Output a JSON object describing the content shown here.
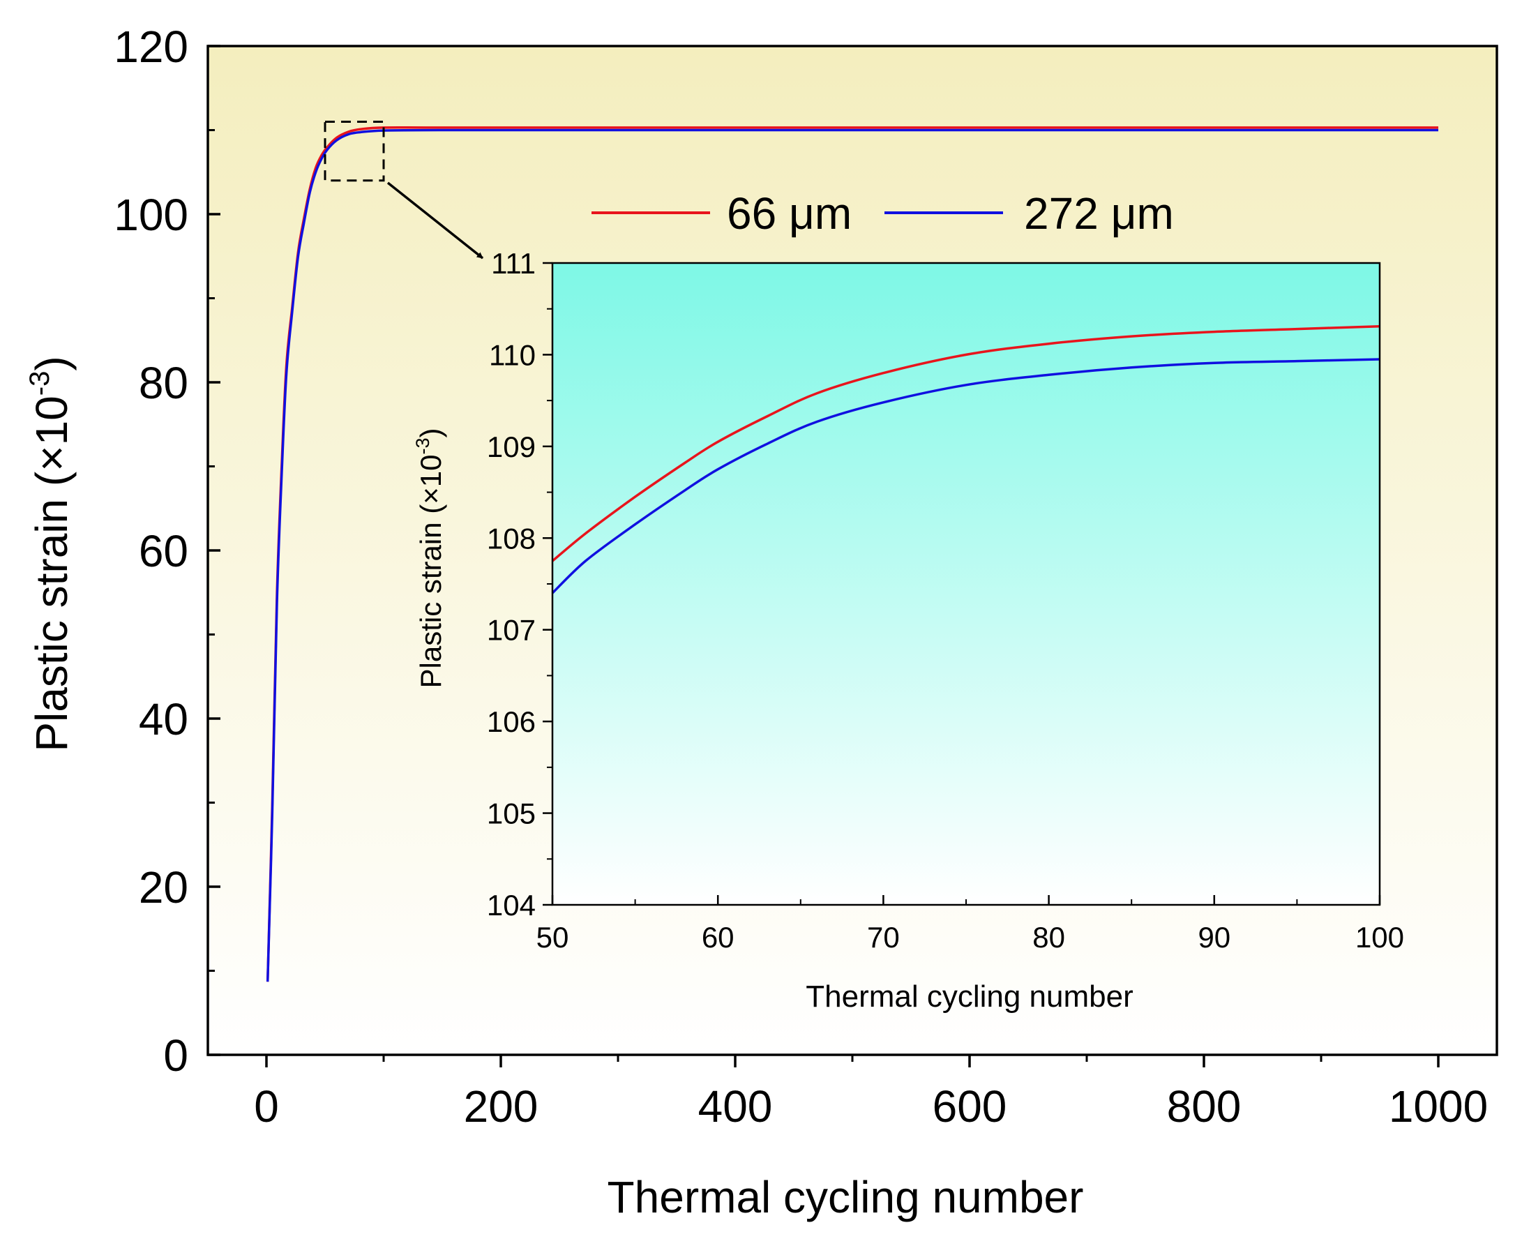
{
  "chart_data": [
    {
      "id": "main",
      "type": "line",
      "title": "",
      "xlabel": "Thermal cycling number",
      "ylabel_main": "Plastic strain (×10",
      "ylabel_exp": "-3",
      "ylabel_close": ")",
      "xlim": [
        -50,
        1050
      ],
      "ylim": [
        0,
        120
      ],
      "xticks": [
        0,
        200,
        400,
        600,
        800,
        1000
      ],
      "xtick_labels": [
        "0",
        "200",
        "400",
        "600",
        "800",
        "1000"
      ],
      "yticks": [
        0,
        20,
        40,
        60,
        80,
        100,
        120
      ],
      "ytick_labels": [
        "0",
        "20",
        "40",
        "60",
        "80",
        "100",
        "120"
      ],
      "grid": false,
      "background": {
        "top": "#f4eebe",
        "bottom": "#ffffff"
      },
      "series": [
        {
          "name": "66 μm",
          "color": "#e8141c",
          "x": [
            1,
            5,
            9,
            13,
            17,
            22,
            27,
            32,
            37,
            42,
            47,
            52,
            60,
            70,
            80,
            100,
            150,
            300,
            500,
            1000
          ],
          "y": [
            8.7,
            30,
            55,
            70,
            82,
            89,
            95.5,
            99.5,
            103,
            105.5,
            107,
            108,
            109.1,
            109.8,
            110.1,
            110.3,
            110.3,
            110.3,
            110.3,
            110.3
          ]
        },
        {
          "name": "272 μm",
          "color": "#1010e0",
          "x": [
            1,
            5,
            9,
            13,
            17,
            22,
            27,
            32,
            37,
            42,
            47,
            52,
            60,
            70,
            80,
            100,
            150,
            300,
            500,
            1000
          ],
          "y": [
            8.7,
            29,
            54,
            69,
            81,
            88.5,
            95,
            99,
            102.6,
            105,
            106.6,
            107.7,
            108.8,
            109.5,
            109.75,
            109.95,
            110,
            110,
            110,
            110
          ]
        }
      ],
      "legend": {
        "placement": "top-right",
        "entries": [
          "66 μm",
          "272 μm"
        ]
      },
      "zoom_box": {
        "x": [
          50,
          100
        ],
        "y": [
          104,
          111
        ]
      }
    },
    {
      "id": "inset",
      "type": "line",
      "title": "",
      "xlabel": "Thermal cycling number",
      "ylabel_main": "Plastic strain (×10",
      "ylabel_exp": "-3",
      "ylabel_close": ")",
      "xlim": [
        50,
        100
      ],
      "ylim": [
        104,
        111
      ],
      "xticks": [
        50,
        60,
        70,
        80,
        90,
        100
      ],
      "xtick_labels": [
        "50",
        "60",
        "70",
        "80",
        "90",
        "100"
      ],
      "yticks": [
        104,
        105,
        106,
        107,
        108,
        109,
        110,
        111
      ],
      "ytick_labels": [
        "104",
        "105",
        "106",
        "107",
        "108",
        "109",
        "110",
        "111"
      ],
      "grid": false,
      "background": {
        "top": "#7ef8e6",
        "bottom": "#ffffff"
      },
      "series": [
        {
          "name": "66 μm",
          "color": "#e8141c",
          "x": [
            50,
            52,
            55,
            58,
            60,
            63,
            66,
            70,
            75,
            80,
            85,
            90,
            95,
            100
          ],
          "y": [
            107.75,
            108.05,
            108.45,
            108.82,
            109.05,
            109.33,
            109.58,
            109.8,
            110.0,
            110.12,
            110.2,
            110.25,
            110.28,
            110.31
          ]
        },
        {
          "name": "272 μm",
          "color": "#1010e0",
          "x": [
            50,
            52,
            55,
            58,
            60,
            63,
            66,
            70,
            75,
            80,
            85,
            90,
            95,
            100
          ],
          "y": [
            107.4,
            107.75,
            108.15,
            108.52,
            108.75,
            109.03,
            109.27,
            109.48,
            109.67,
            109.78,
            109.86,
            109.91,
            109.93,
            109.95
          ]
        }
      ]
    }
  ]
}
